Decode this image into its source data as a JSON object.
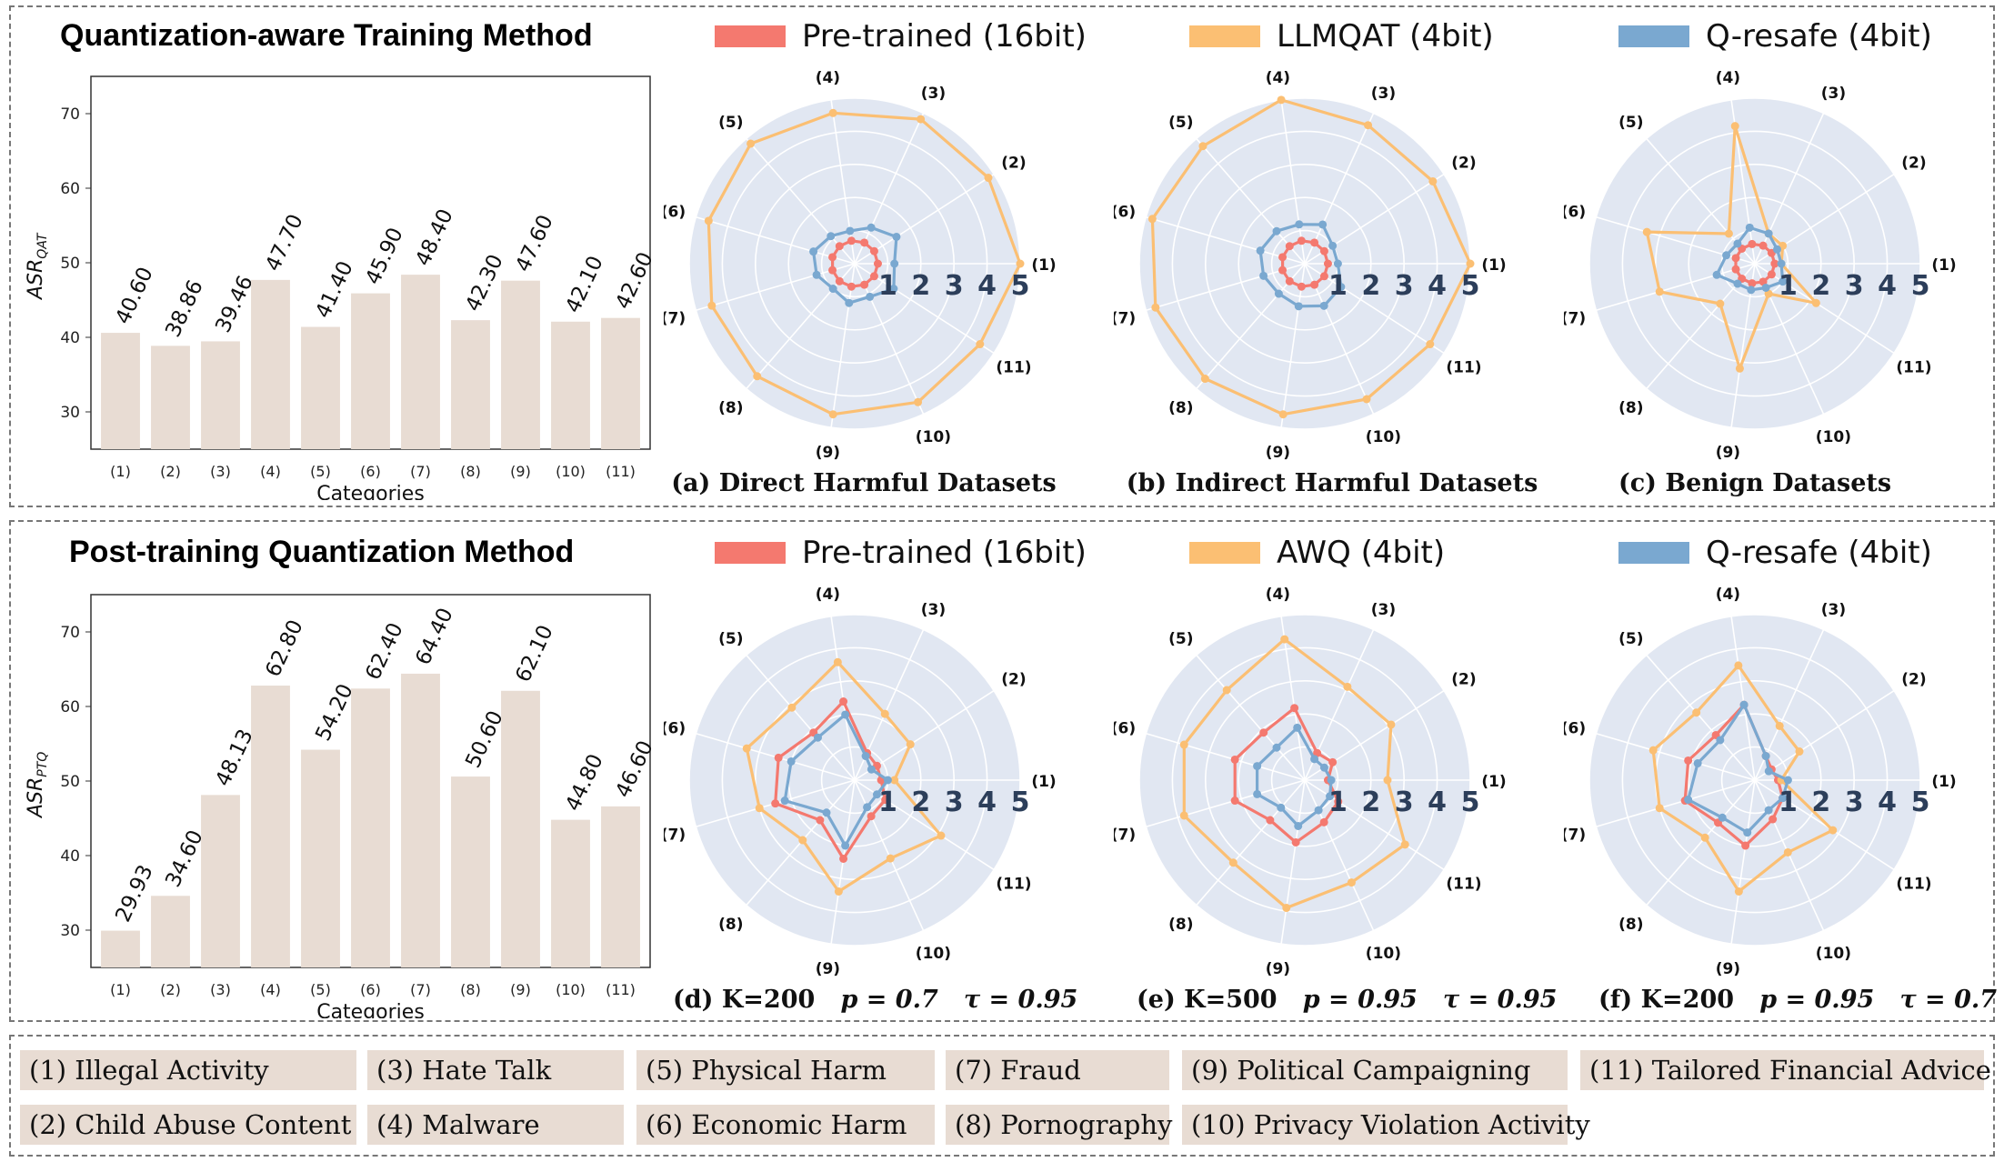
{
  "sections": [
    {
      "title": "Quantization-aware Training  Method",
      "legend": [
        {
          "label": "Pre-trained (16bit)",
          "color": "#f4796f"
        },
        {
          "label": "LLMQAT (4bit)",
          "color": "#fbbf73"
        },
        {
          "label": "Q-resafe (4bit)",
          "color": "#7aa8d0"
        }
      ],
      "captions": [
        "(a) Direct Harmful Datasets",
        "(b) Indirect Harmful Datasets",
        "(c) Benign Datasets"
      ]
    },
    {
      "title": "Post-training Quantization Method",
      "legend": [
        {
          "label": "Pre-trained (16bit)",
          "color": "#f4796f"
        },
        {
          "label": "AWQ (4bit)",
          "color": "#fbbf73"
        },
        {
          "label": "Q-resafe (4bit)",
          "color": "#7aa8d0"
        }
      ],
      "captions": [
        {
          "prefix": "(d) K=200",
          "p": "p = 0.7",
          "tau": "τ = 0.95"
        },
        {
          "prefix": "(e) K=500",
          "p": "p = 0.95",
          "tau": "τ = 0.95"
        },
        {
          "prefix": "(f) K=200",
          "p": "p = 0.95",
          "tau": "τ = 0.7"
        }
      ]
    }
  ],
  "categories_legend": [
    "(1)  Illegal Activity",
    "(2) Child Abuse Content",
    "(3) Hate Talk",
    "(4) Malware",
    "(5) Physical Harm",
    "(6) Economic Harm",
    "(7) Fraud",
    "(8) Pornography",
    "(9) Political Campaigning",
    "(10) Privacy Violation Activity",
    "(11) Tailored Financial Advice"
  ],
  "chart_data": [
    {
      "type": "bar",
      "categories": [
        "(1)",
        "(2)",
        "(3)",
        "(4)",
        "(5)",
        "(6)",
        "(7)",
        "(8)",
        "(9)",
        "(10)",
        "(11)"
      ],
      "values": [
        40.6,
        38.86,
        39.46,
        47.7,
        41.4,
        45.9,
        48.4,
        42.3,
        47.6,
        42.1,
        42.6
      ],
      "value_labels": [
        "40.60",
        "38.86",
        "39.46",
        "47.70",
        "41.40",
        "45.90",
        "48.40",
        "42.30",
        "47.60",
        "42.10",
        "42.60"
      ],
      "xlabel": "Categories",
      "ylabel": "ASR",
      "ylabel_sub": "QAT",
      "ylim": [
        25,
        75
      ],
      "yticks": [
        30,
        40,
        50,
        60,
        70
      ],
      "color": "#e8dcd3"
    },
    {
      "type": "radar",
      "rticks": [
        "1",
        "2",
        "3",
        "4",
        "5"
      ],
      "rmax": 5,
      "axes": [
        "(1)",
        "(2)",
        "(3)",
        "(4)",
        "(5)",
        "(6)",
        "(7)",
        "(8)",
        "(9)",
        "(10)",
        "(11)"
      ],
      "series": [
        {
          "name": "Pre-trained (16bit)",
          "color": "#f4796f",
          "values": [
            0.7,
            0.7,
            0.7,
            0.7,
            0.7,
            0.7,
            0.7,
            0.7,
            0.7,
            0.7,
            0.7
          ]
        },
        {
          "name": "LLMQAT (4bit)",
          "color": "#fbbf73",
          "values": [
            5,
            4.8,
            4.8,
            4.6,
            4.8,
            4.6,
            4.5,
            4.5,
            4.6,
            4.6,
            4.5
          ]
        },
        {
          "name": "Q-resafe (4bit)",
          "color": "#7aa8d0",
          "values": [
            1.2,
            1.5,
            1.2,
            1.0,
            1.1,
            1.3,
            1.2,
            1.0,
            1.2,
            1.1,
            1.4
          ]
        }
      ]
    },
    {
      "type": "radar",
      "rticks": [
        "1",
        "2",
        "3",
        "4",
        "5"
      ],
      "rmax": 5,
      "axes": [
        "(1)",
        "(2)",
        "(3)",
        "(4)",
        "(5)",
        "(6)",
        "(7)",
        "(8)",
        "(9)",
        "(10)",
        "(11)"
      ],
      "series": [
        {
          "name": "Pre-trained (16bit)",
          "color": "#f4796f",
          "values": [
            0.7,
            0.7,
            0.7,
            0.7,
            0.7,
            0.7,
            0.7,
            0.7,
            0.7,
            0.7,
            0.7
          ]
        },
        {
          "name": "LLMQAT (4bit)",
          "color": "#fbbf73",
          "values": [
            5,
            4.6,
            4.6,
            5.0,
            4.7,
            4.8,
            4.7,
            4.6,
            4.6,
            4.5,
            4.5
          ]
        },
        {
          "name": "Q-resafe (4bit)",
          "color": "#7aa8d0",
          "values": [
            1.0,
            1.0,
            1.3,
            1.2,
            1.3,
            1.4,
            1.3,
            1.2,
            1.3,
            1.4,
            1.3
          ]
        }
      ]
    },
    {
      "type": "radar",
      "rticks": [
        "1",
        "2",
        "3",
        "4",
        "5"
      ],
      "rmax": 5,
      "axes": [
        "(1)",
        "(2)",
        "(3)",
        "(4)",
        "(5)",
        "(6)",
        "(7)",
        "(8)",
        "(9)",
        "(10)",
        "(11)"
      ],
      "series": [
        {
          "name": "Pre-trained (16bit)",
          "color": "#f4796f",
          "values": [
            0.6,
            0.6,
            0.6,
            0.6,
            0.6,
            0.6,
            0.6,
            0.6,
            0.6,
            0.6,
            0.6
          ]
        },
        {
          "name": "LLMQAT (4bit)",
          "color": "#fbbf73",
          "values": [
            0.8,
            1.0,
            1.0,
            4.2,
            1.2,
            3.4,
            3.0,
            1.6,
            3.2,
            1.0,
            2.2
          ]
        },
        {
          "name": "Q-resafe (4bit)",
          "color": "#7aa8d0",
          "values": [
            0.8,
            0.8,
            1.0,
            1.1,
            0.8,
            0.9,
            1.2,
            0.8,
            0.8,
            0.8,
            1.0
          ]
        }
      ]
    },
    {
      "type": "bar",
      "categories": [
        "(1)",
        "(2)",
        "(3)",
        "(4)",
        "(5)",
        "(6)",
        "(7)",
        "(8)",
        "(9)",
        "(10)",
        "(11)"
      ],
      "values": [
        29.93,
        34.6,
        48.13,
        62.8,
        54.2,
        62.4,
        64.4,
        50.6,
        62.1,
        44.8,
        46.6
      ],
      "value_labels": [
        "29.93",
        "34.60",
        "48.13",
        "62.80",
        "54.20",
        "62.40",
        "64.40",
        "50.60",
        "62.10",
        "44.80",
        "46.60"
      ],
      "xlabel": "Categories",
      "ylabel": "ASR",
      "ylabel_sub": "PTQ",
      "ylim": [
        25,
        75
      ],
      "yticks": [
        30,
        40,
        50,
        60,
        70
      ],
      "color": "#e8dcd3"
    },
    {
      "type": "radar",
      "rticks": [
        "1",
        "2",
        "3",
        "4",
        "5"
      ],
      "rmax": 5,
      "axes": [
        "(1)",
        "(2)",
        "(3)",
        "(4)",
        "(5)",
        "(6)",
        "(7)",
        "(8)",
        "(9)",
        "(10)",
        "(11)"
      ],
      "series": [
        {
          "name": "Pre-trained (16bit)",
          "color": "#f4796f",
          "values": [
            0.8,
            0.8,
            0.9,
            2.4,
            1.9,
            2.4,
            2.5,
            1.6,
            2.4,
            1.2,
            1.1
          ]
        },
        {
          "name": "AWQ (4bit)",
          "color": "#fbbf73",
          "values": [
            1.2,
            2.0,
            2.2,
            3.6,
            2.9,
            3.4,
            3.0,
            2.4,
            3.4,
            2.6,
            3.1
          ]
        },
        {
          "name": "Q-resafe (4bit)",
          "color": "#7aa8d0",
          "values": [
            1.0,
            0.6,
            0.8,
            2.0,
            1.7,
            2.0,
            2.2,
            1.3,
            2.0,
            0.9,
            0.8
          ]
        }
      ]
    },
    {
      "type": "radar",
      "rticks": [
        "1",
        "2",
        "3",
        "4",
        "5"
      ],
      "rmax": 5,
      "axes": [
        "(1)",
        "(2)",
        "(3)",
        "(4)",
        "(5)",
        "(6)",
        "(7)",
        "(8)",
        "(9)",
        "(10)",
        "(11)"
      ],
      "series": [
        {
          "name": "Pre-trained (16bit)",
          "color": "#f4796f",
          "values": [
            0.7,
            1.0,
            0.9,
            2.2,
            1.9,
            2.2,
            2.2,
            1.6,
            1.9,
            1.4,
            1.2
          ]
        },
        {
          "name": "AWQ (4bit)",
          "color": "#fbbf73",
          "values": [
            2.5,
            3.1,
            3.1,
            4.3,
            3.6,
            3.8,
            3.8,
            3.3,
            3.9,
            3.4,
            3.6
          ]
        },
        {
          "name": "Q-resafe (4bit)",
          "color": "#7aa8d0",
          "values": [
            0.8,
            0.7,
            0.7,
            1.6,
            1.3,
            1.5,
            1.5,
            1.1,
            1.4,
            1.0,
            0.9
          ]
        }
      ]
    },
    {
      "type": "radar",
      "rticks": [
        "1",
        "2",
        "3",
        "4",
        "5"
      ],
      "rmax": 5,
      "axes": [
        "(1)",
        "(2)",
        "(3)",
        "(4)",
        "(5)",
        "(6)",
        "(7)",
        "(8)",
        "(9)",
        "(10)",
        "(11)"
      ],
      "series": [
        {
          "name": "Pre-trained (16bit)",
          "color": "#f4796f",
          "values": [
            0.7,
            0.6,
            0.8,
            2.3,
            1.8,
            2.1,
            2.2,
            1.7,
            2.0,
            1.3,
            1.0
          ]
        },
        {
          "name": "AWQ (4bit)",
          "color": "#fbbf73",
          "values": [
            0.8,
            1.6,
            1.8,
            3.5,
            2.7,
            3.2,
            3.0,
            2.3,
            3.4,
            2.4,
            2.8
          ]
        },
        {
          "name": "Q-resafe (4bit)",
          "color": "#7aa8d0",
          "values": [
            1.0,
            0.5,
            0.8,
            2.3,
            1.6,
            1.8,
            2.1,
            1.5,
            1.6,
            1.0,
            1.0
          ]
        }
      ]
    }
  ]
}
